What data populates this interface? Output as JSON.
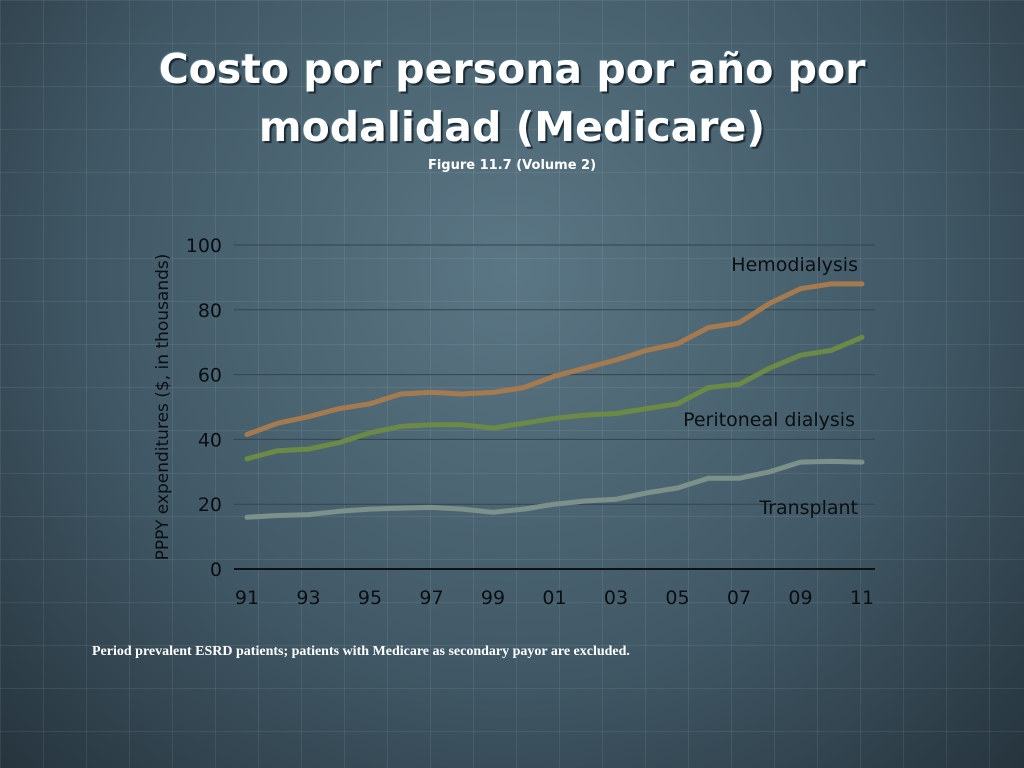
{
  "slide": {
    "title_line1": "Costo por persona por año por",
    "title_line2": "modalidad (Medicare)",
    "subtitle": "Figure 11.7 (Volume 2)",
    "footnote": "Period prevalent ESRD patients; patients with Medicare as secondary payor are excluded."
  },
  "chart_data": {
    "type": "line",
    "ylabel": "PPPY expenditures ($, in thousands)",
    "xlabel": "",
    "ylim": [
      0,
      100
    ],
    "yticks": [
      0,
      20,
      40,
      60,
      80,
      100
    ],
    "x": [
      "91",
      "92",
      "93",
      "94",
      "95",
      "96",
      "97",
      "98",
      "99",
      "00",
      "01",
      "02",
      "03",
      "04",
      "05",
      "06",
      "07",
      "08",
      "09",
      "10",
      "11"
    ],
    "xtick_labels": [
      "91",
      "93",
      "95",
      "97",
      "99",
      "01",
      "03",
      "05",
      "07",
      "09",
      "11"
    ],
    "grid": true,
    "series": [
      {
        "name": "Hemodialysis",
        "color": "#a67a4f",
        "values": [
          41.5,
          45,
          47,
          49.5,
          51,
          54,
          54.5,
          54,
          54.5,
          56,
          59.5,
          62,
          64.5,
          67.5,
          69.5,
          74.5,
          76,
          82,
          86.5,
          88,
          88
        ]
      },
      {
        "name": "Peritoneal dialysis",
        "color": "#6b8a45",
        "values": [
          34,
          36.5,
          37,
          39,
          42,
          44,
          44.5,
          44.5,
          43.5,
          45,
          46.5,
          47.5,
          48,
          49.5,
          51,
          56,
          57,
          62,
          66,
          67.5,
          71.5
        ]
      },
      {
        "name": "Transplant",
        "color": "#7c918a",
        "values": [
          16,
          16.5,
          16.8,
          17.8,
          18.5,
          18.8,
          19,
          18.5,
          17.5,
          18.5,
          20,
          21,
          21.5,
          23.5,
          25,
          28,
          28,
          30,
          33,
          33.2,
          33
        ]
      }
    ]
  }
}
